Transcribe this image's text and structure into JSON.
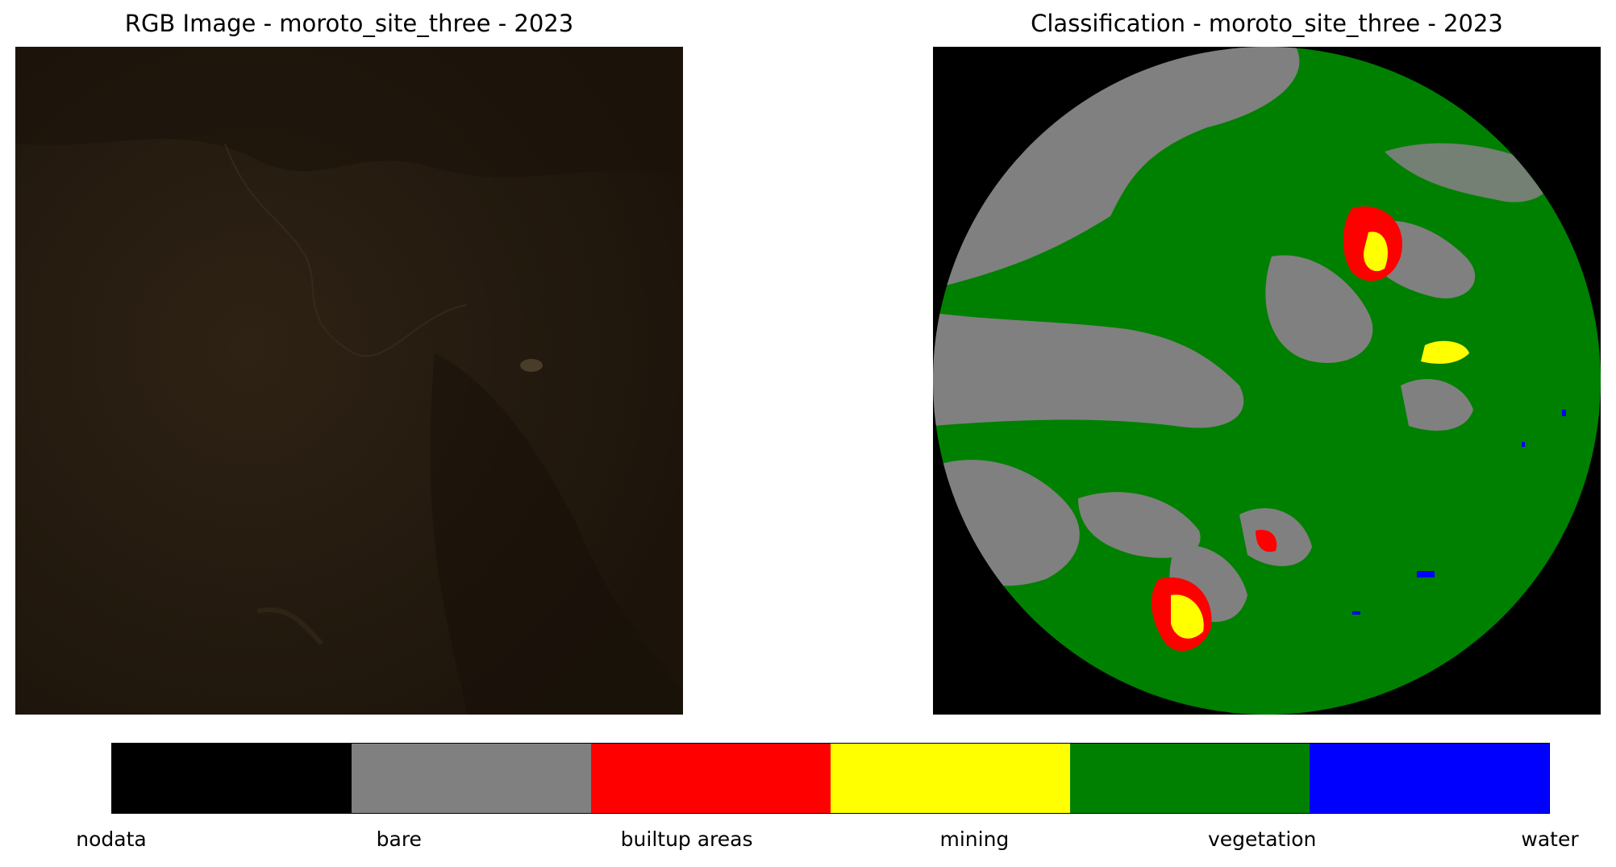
{
  "panels": {
    "rgb_title": "RGB Image - moroto_site_three - 2023",
    "classification_title": "Classification - moroto_site_three - 2023"
  },
  "legend": {
    "classes": [
      {
        "label": "nodata",
        "color": "#000000"
      },
      {
        "label": "bare",
        "color": "#808080"
      },
      {
        "label": "builtup areas",
        "color": "#ff0000"
      },
      {
        "label": "mining",
        "color": "#ffff00"
      },
      {
        "label": "vegetation",
        "color": "#008000"
      },
      {
        "label": "water",
        "color": "#0000ff"
      }
    ]
  },
  "colors": {
    "rgb_dark": "#1f160c",
    "rgb_light": "#2c2114"
  }
}
